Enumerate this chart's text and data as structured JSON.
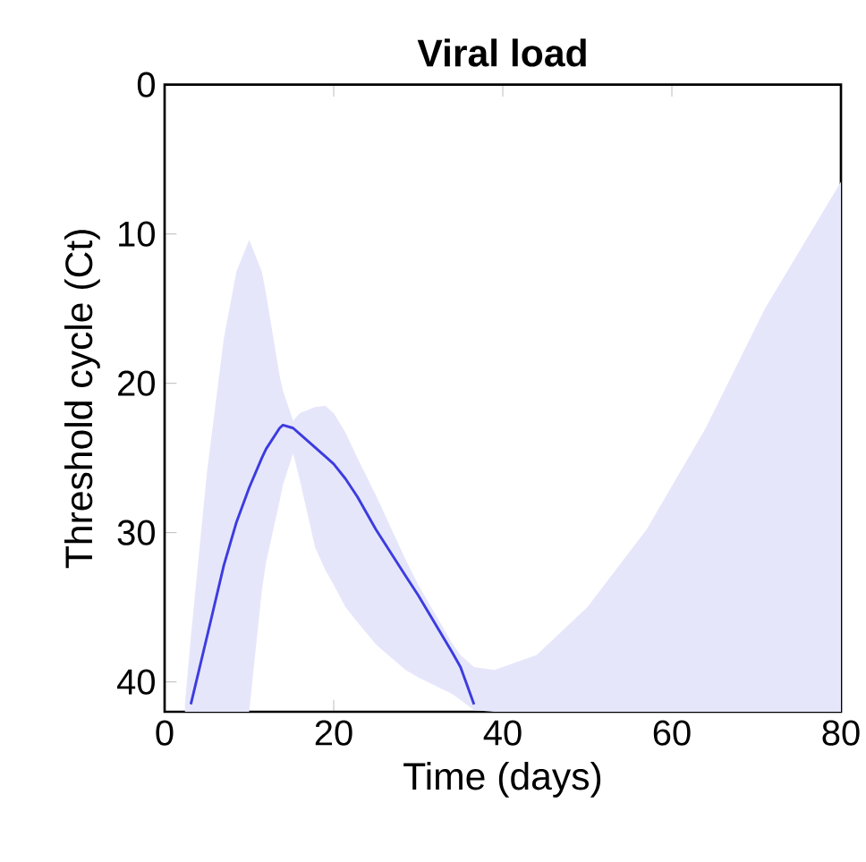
{
  "chart_data": {
    "type": "line",
    "title": "Viral load",
    "xlabel": "Time (days)",
    "ylabel": "Threshold cycle (Ct)",
    "xlim": [
      0,
      80
    ],
    "ylim": [
      42,
      0
    ],
    "xticks": [
      0,
      20,
      40,
      60,
      80
    ],
    "yticks": [
      0,
      10,
      20,
      30,
      40
    ],
    "series": [
      {
        "color": "#3c3ce0",
        "x": [
          2.4,
          3.1,
          5,
          7,
          8.5,
          10,
          11.5,
          12,
          13.6,
          14,
          15.2,
          16,
          17.8,
          19,
          20,
          21.4,
          22.8,
          25,
          28.5,
          30,
          34,
          35,
          36.6,
          39,
          44,
          50,
          57,
          64,
          71,
          80
        ],
        "values": [
          null,
          41.5,
          37,
          32.2,
          29.3,
          27,
          25,
          24.4,
          23,
          22.8,
          23,
          23.4,
          24.3,
          24.9,
          25.4,
          26.4,
          27.6,
          29.8,
          32.9,
          34.2,
          38,
          39,
          41.5,
          null,
          null,
          null,
          null,
          null,
          null,
          null
        ],
        "upper": [
          41.5,
          37,
          26,
          17,
          12.5,
          10.4,
          12.5,
          14,
          19.5,
          20.5,
          22.5,
          22,
          21.6,
          21.5,
          22,
          23.3,
          25,
          27.5,
          31.8,
          33.5,
          37.4,
          38.2,
          39,
          39.2,
          38.2,
          35,
          29.8,
          23,
          15,
          6.5
        ],
        "lower": [
          42,
          42,
          42,
          42,
          42,
          42,
          33.9,
          32,
          27.9,
          26.8,
          24.7,
          26.5,
          31,
          32.5,
          33.5,
          35,
          36,
          37.5,
          39.2,
          39.7,
          40.8,
          41.2,
          41.9,
          42,
          42,
          42,
          42,
          42,
          42,
          42
        ]
      }
    ]
  }
}
